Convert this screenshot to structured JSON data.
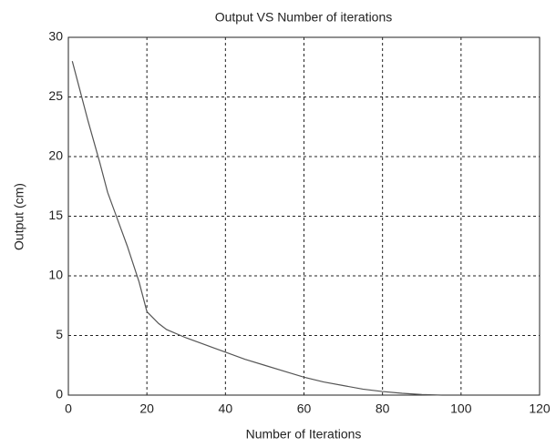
{
  "chart_data": {
    "type": "line",
    "title": "Output VS  Number of iterations",
    "x_label": "Number of Iterations",
    "y_label": "Output (cm)",
    "x": [
      1,
      3,
      5,
      8,
      10,
      13,
      15,
      18,
      20,
      23,
      25,
      30,
      35,
      40,
      45,
      50,
      55,
      60,
      65,
      70,
      75,
      80,
      85,
      90,
      95
    ],
    "series": [
      {
        "color": "#555555",
        "values": [
          28,
          25.5,
          23,
          19.5,
          17,
          14.3,
          12.5,
          9.5,
          7,
          6,
          5.5,
          4.8,
          4.2,
          3.6,
          3,
          2.5,
          2,
          1.5,
          1.1,
          0.8,
          0.5,
          0.3,
          0.15,
          0.05,
          0
        ]
      }
    ],
    "xlim": [
      0,
      120
    ],
    "ylim": [
      0,
      30
    ],
    "xticks": [
      0,
      20,
      40,
      60,
      80,
      100,
      120
    ],
    "yticks": [
      0,
      5,
      10,
      15,
      20,
      25,
      30
    ],
    "grid": true
  }
}
